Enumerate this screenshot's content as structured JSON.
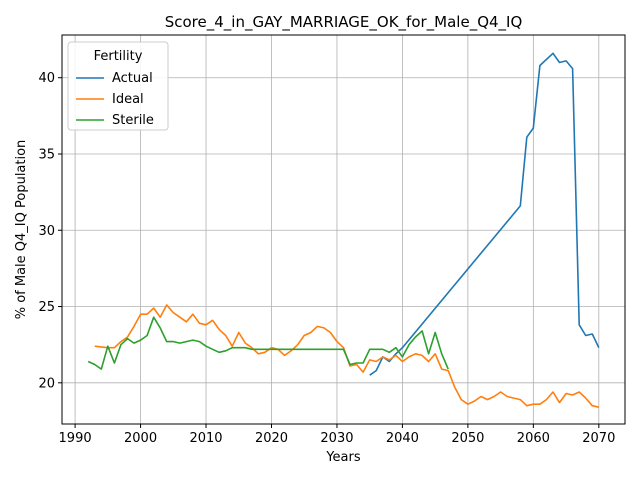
{
  "chart_data": {
    "type": "line",
    "title": "Score_4_in_GAY_MARRIAGE_OK_for_Male_Q4_IQ",
    "xlabel": "Years",
    "ylabel": "% of Male Q4_IQ Population",
    "xlim": [
      1988,
      2074
    ],
    "ylim": [
      17.3,
      42.8
    ],
    "xticks": [
      1990,
      2000,
      2010,
      2020,
      2030,
      2040,
      2050,
      2060,
      2070
    ],
    "yticks": [
      20,
      25,
      30,
      35,
      40
    ],
    "grid": true,
    "legend": {
      "title": "Fertility",
      "position": "top-left"
    },
    "series": [
      {
        "name": "Actual",
        "color": "#1f77b4",
        "points": [
          [
            2035,
            20.5
          ],
          [
            2036,
            20.8
          ],
          [
            2037,
            21.7
          ],
          [
            2038,
            21.4
          ],
          [
            2039,
            21.9
          ],
          [
            2040,
            22.3
          ],
          [
            2058,
            31.6
          ],
          [
            2059,
            36.1
          ],
          [
            2060,
            36.7
          ],
          [
            2061,
            40.8
          ],
          [
            2063,
            41.6
          ],
          [
            2064,
            41.0
          ],
          [
            2065,
            41.1
          ],
          [
            2066,
            40.6
          ],
          [
            2067,
            23.8
          ],
          [
            2068,
            23.1
          ],
          [
            2069,
            23.2
          ],
          [
            2070,
            22.3
          ]
        ]
      },
      {
        "name": "Ideal",
        "color": "#ff7f0e",
        "points": [
          [
            1993,
            22.4
          ],
          [
            1995,
            22.3
          ],
          [
            1996,
            22.3
          ],
          [
            1997,
            22.7
          ],
          [
            1998,
            23.0
          ],
          [
            1999,
            23.7
          ],
          [
            2000,
            24.5
          ],
          [
            2001,
            24.5
          ],
          [
            2002,
            24.9
          ],
          [
            2003,
            24.3
          ],
          [
            2004,
            25.1
          ],
          [
            2005,
            24.6
          ],
          [
            2006,
            24.3
          ],
          [
            2007,
            24.0
          ],
          [
            2008,
            24.5
          ],
          [
            2009,
            23.9
          ],
          [
            2010,
            23.8
          ],
          [
            2011,
            24.1
          ],
          [
            2012,
            23.5
          ],
          [
            2013,
            23.1
          ],
          [
            2014,
            22.4
          ],
          [
            2015,
            23.3
          ],
          [
            2016,
            22.6
          ],
          [
            2017,
            22.3
          ],
          [
            2018,
            21.9
          ],
          [
            2019,
            22.0
          ],
          [
            2020,
            22.3
          ],
          [
            2021,
            22.2
          ],
          [
            2022,
            21.8
          ],
          [
            2023,
            22.1
          ],
          [
            2024,
            22.5
          ],
          [
            2025,
            23.1
          ],
          [
            2026,
            23.3
          ],
          [
            2027,
            23.7
          ],
          [
            2028,
            23.6
          ],
          [
            2029,
            23.3
          ],
          [
            2030,
            22.7
          ],
          [
            2031,
            22.3
          ],
          [
            2032,
            21.1
          ],
          [
            2033,
            21.2
          ],
          [
            2034,
            20.7
          ],
          [
            2035,
            21.5
          ],
          [
            2036,
            21.4
          ],
          [
            2037,
            21.7
          ],
          [
            2038,
            21.5
          ],
          [
            2039,
            21.8
          ],
          [
            2040,
            21.4
          ],
          [
            2041,
            21.7
          ],
          [
            2042,
            21.9
          ],
          [
            2043,
            21.8
          ],
          [
            2044,
            21.4
          ],
          [
            2045,
            21.9
          ],
          [
            2046,
            20.9
          ],
          [
            2047,
            20.8
          ],
          [
            2048,
            19.7
          ],
          [
            2049,
            18.9
          ],
          [
            2050,
            18.6
          ],
          [
            2051,
            18.8
          ],
          [
            2052,
            19.1
          ],
          [
            2053,
            18.9
          ],
          [
            2054,
            19.1
          ],
          [
            2055,
            19.4
          ],
          [
            2056,
            19.1
          ],
          [
            2057,
            19.0
          ],
          [
            2058,
            18.9
          ],
          [
            2059,
            18.5
          ],
          [
            2060,
            18.6
          ],
          [
            2061,
            18.6
          ],
          [
            2062,
            18.9
          ],
          [
            2063,
            19.4
          ],
          [
            2064,
            18.7
          ],
          [
            2065,
            19.3
          ],
          [
            2066,
            19.2
          ],
          [
            2067,
            19.4
          ],
          [
            2068,
            19.0
          ],
          [
            2069,
            18.5
          ],
          [
            2070,
            18.4
          ]
        ]
      },
      {
        "name": "Sterile",
        "color": "#2ca02c",
        "points": [
          [
            1992,
            21.4
          ],
          [
            1993,
            21.2
          ],
          [
            1994,
            20.9
          ],
          [
            1995,
            22.4
          ],
          [
            1996,
            21.3
          ],
          [
            1997,
            22.5
          ],
          [
            1998,
            22.9
          ],
          [
            1999,
            22.6
          ],
          [
            2000,
            22.8
          ],
          [
            2001,
            23.1
          ],
          [
            2002,
            24.3
          ],
          [
            2003,
            23.6
          ],
          [
            2004,
            22.7
          ],
          [
            2005,
            22.7
          ],
          [
            2006,
            22.6
          ],
          [
            2007,
            22.7
          ],
          [
            2008,
            22.8
          ],
          [
            2009,
            22.7
          ],
          [
            2010,
            22.4
          ],
          [
            2011,
            22.2
          ],
          [
            2012,
            22.0
          ],
          [
            2013,
            22.1
          ],
          [
            2014,
            22.3
          ],
          [
            2015,
            22.3
          ],
          [
            2016,
            22.3
          ],
          [
            2017,
            22.2
          ],
          [
            2018,
            22.2
          ],
          [
            2019,
            22.2
          ],
          [
            2020,
            22.2
          ],
          [
            2030,
            22.2
          ],
          [
            2031,
            22.2
          ],
          [
            2032,
            21.2
          ],
          [
            2033,
            21.3
          ],
          [
            2034,
            21.3
          ],
          [
            2035,
            22.2
          ],
          [
            2036,
            22.2
          ],
          [
            2037,
            22.2
          ],
          [
            2038,
            22.0
          ],
          [
            2039,
            22.3
          ],
          [
            2040,
            21.7
          ],
          [
            2041,
            22.5
          ],
          [
            2042,
            23.0
          ],
          [
            2043,
            23.4
          ],
          [
            2044,
            21.9
          ],
          [
            2045,
            23.3
          ],
          [
            2046,
            21.9
          ],
          [
            2047,
            20.9
          ]
        ]
      }
    ]
  }
}
